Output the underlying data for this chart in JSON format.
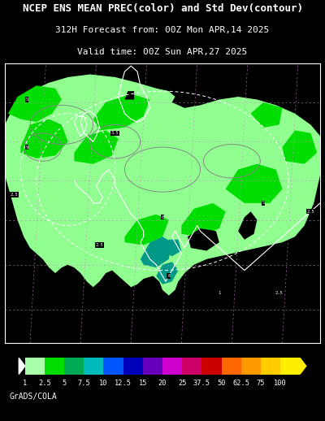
{
  "title_line1": "NCEP ENS MEAN PREC(color) and Std Dev(contour)",
  "title_line2": "312H Forecast from: 00Z Mon APR,14 2025",
  "title_line3": "Valid time: 00Z Sun APR,27 2025",
  "background_color": "#000000",
  "credit_text": "GrADS/COLA",
  "colorbar_labels": [
    "1",
    "2.5",
    "5",
    "7.5",
    "10",
    "12.5",
    "15",
    "20",
    "25",
    "37.5",
    "50",
    "62.5",
    "75",
    "100"
  ],
  "colorbar_colors": [
    "#aaffaa",
    "#00dd00",
    "#00aa55",
    "#00bbbb",
    "#0055ff",
    "#0000bb",
    "#6600bb",
    "#cc00cc",
    "#cc0066",
    "#cc0000",
    "#ff6600",
    "#ff9900",
    "#ffcc00",
    "#ffee00"
  ],
  "title_fontsize": 9.0,
  "subtitle_fontsize": 8.0,
  "credit_fontsize": 7.0,
  "map_border_color": "#ffffff",
  "lat_line_color": "#cc88cc",
  "contour_color": "#888888"
}
